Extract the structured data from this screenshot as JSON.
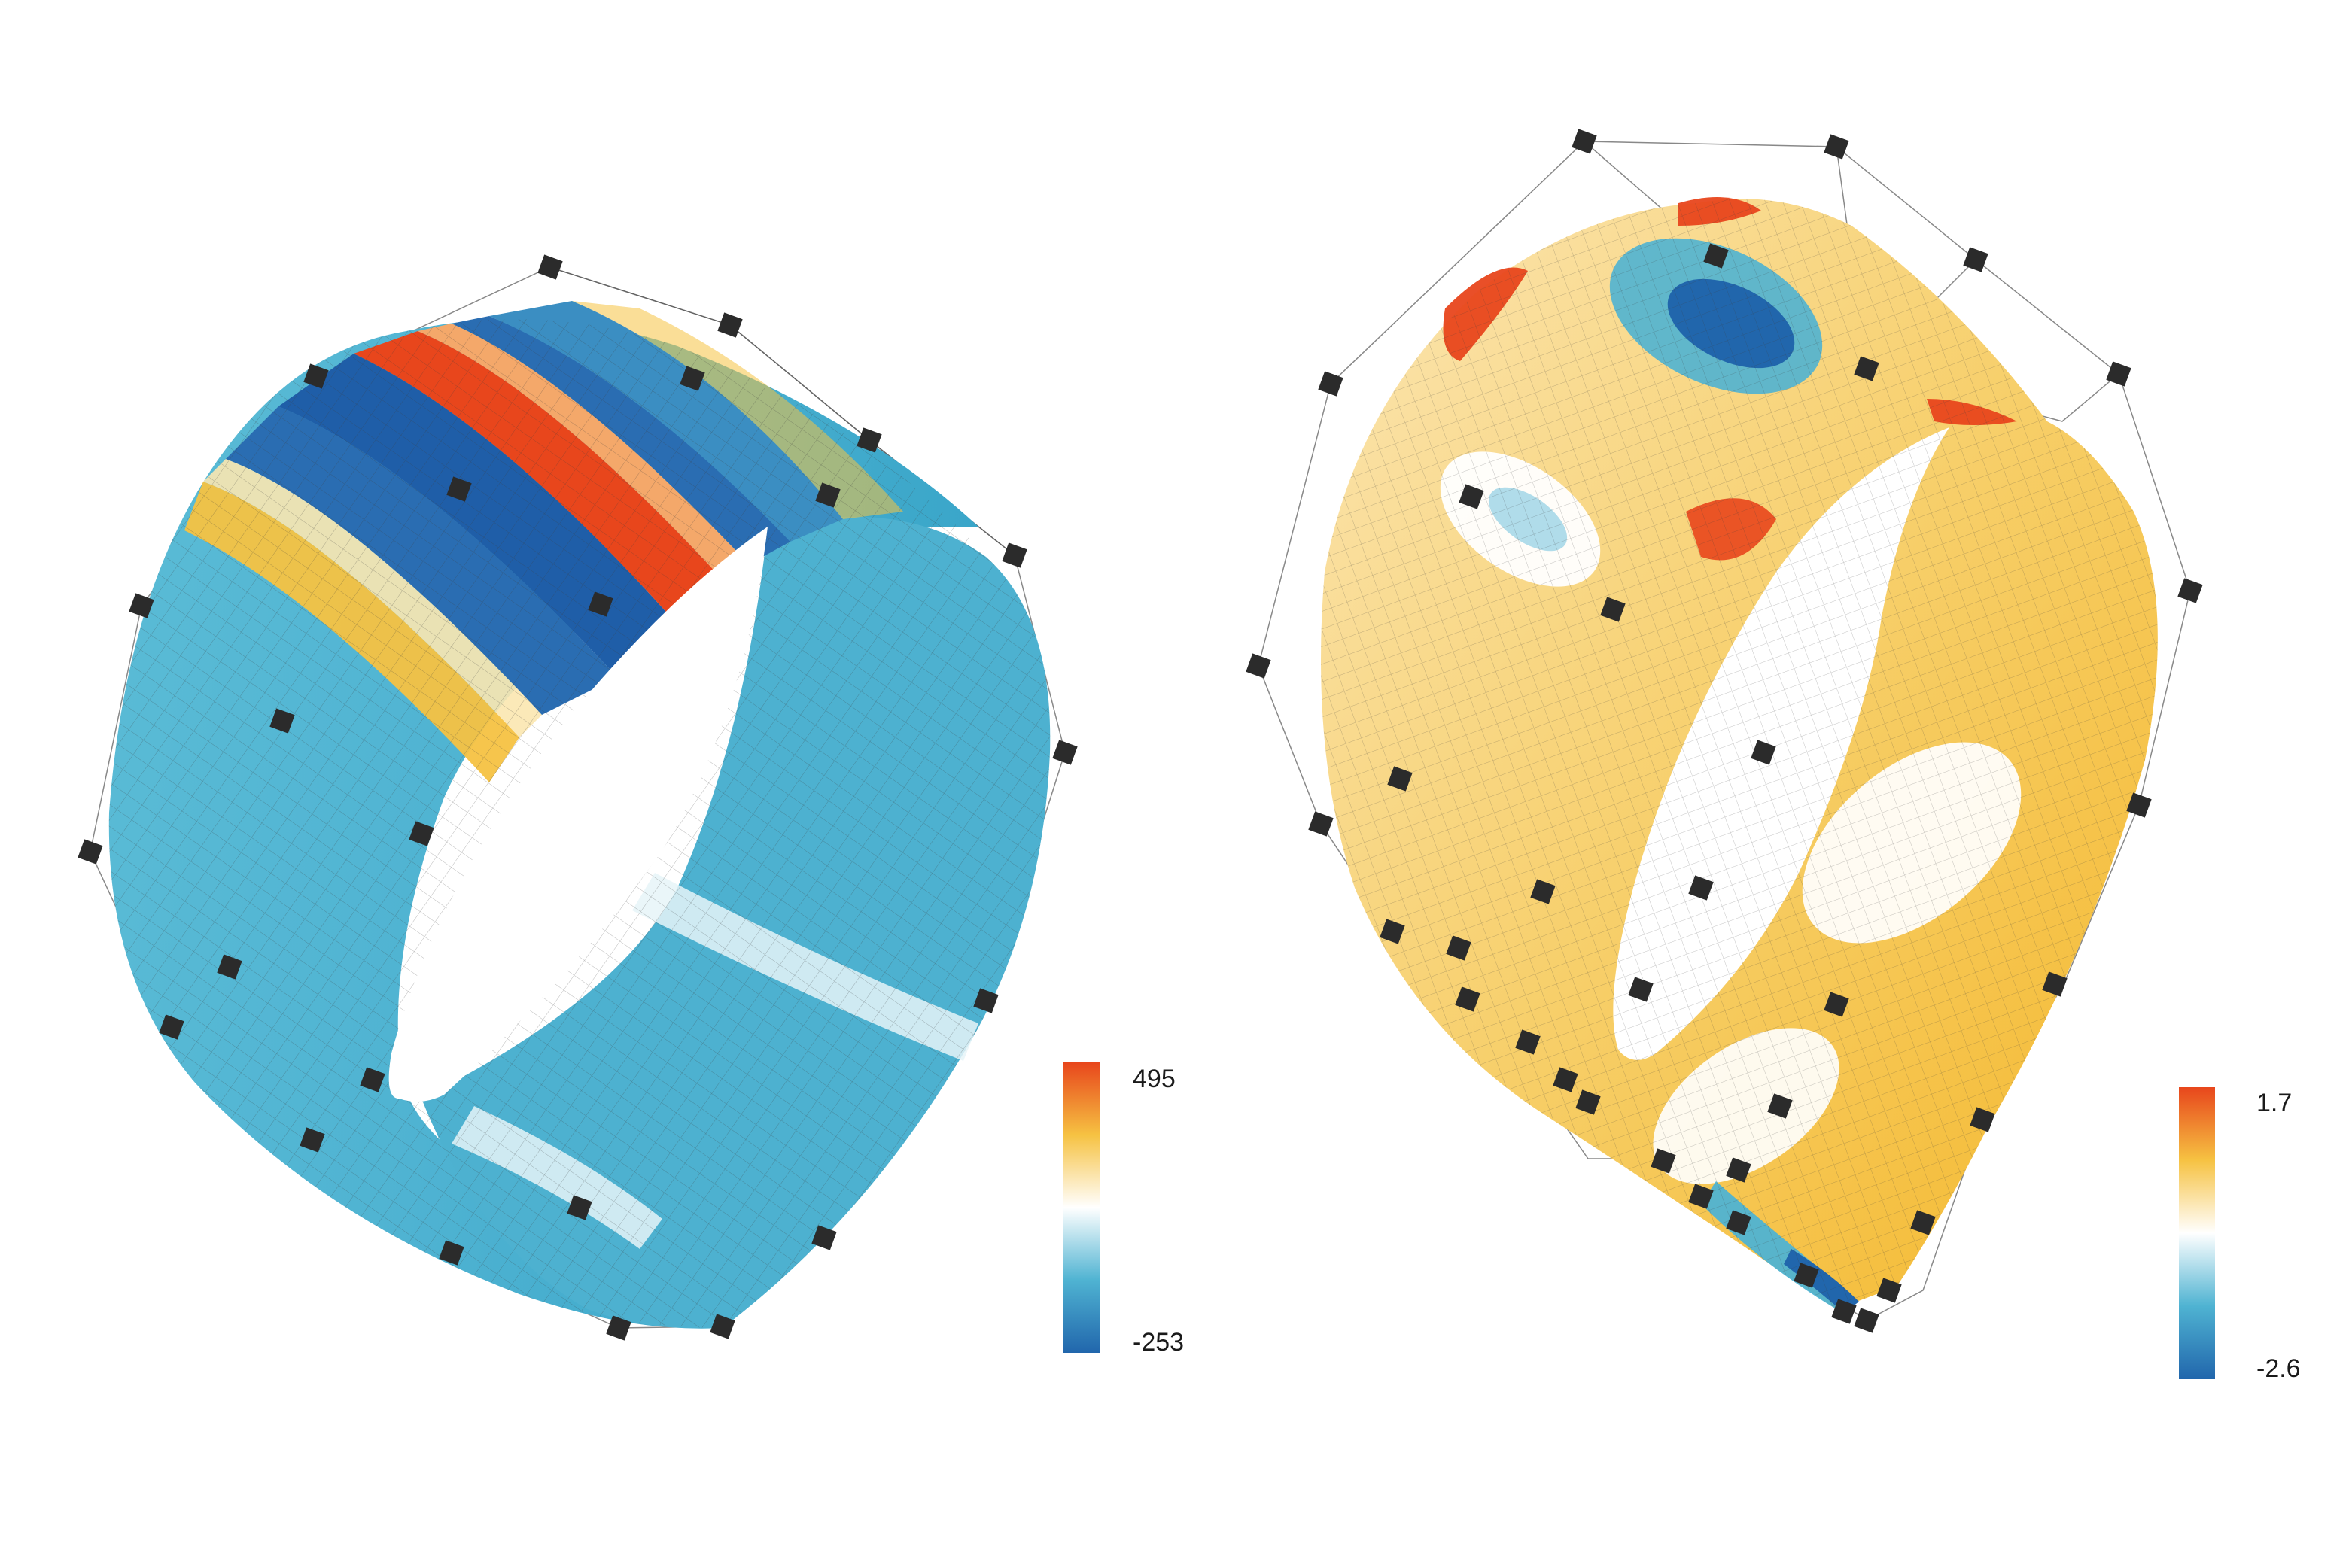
{
  "figures": [
    {
      "id": "cylinder",
      "colorbar": {
        "max_label": "495",
        "min_label": "-253"
      }
    },
    {
      "id": "droplet",
      "colorbar": {
        "max_label": "1.7",
        "min_label": "-2.6"
      }
    }
  ],
  "colors": {
    "scale_low": "#2166ac",
    "scale_midlow": "#4fb3d2",
    "scale_mid": "#ffffff",
    "scale_midhigh": "#f6c242",
    "scale_high": "#e8461c",
    "control_point": "#2b2b2b",
    "mesh_line": "#4a4a4a"
  }
}
